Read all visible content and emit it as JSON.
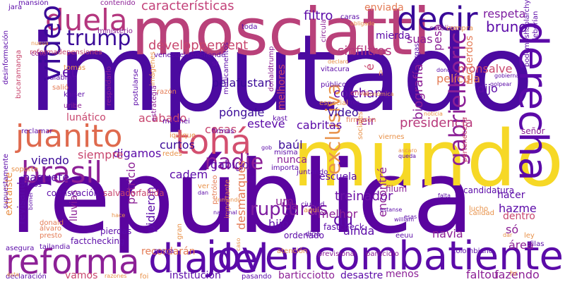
{
  "word_cloud": {
    "words": [
      {
        "text": "imputado",
        "color": "#4b0aa0"
      },
      {
        "text": "república",
        "color": "#5a049f"
      },
      {
        "text": "mundo",
        "color": "#f6d826"
      },
      {
        "text": "mosciatti",
        "color": "#b9417a"
      },
      {
        "text": "jovencombatiente",
        "color": "#5b0aa8"
      },
      {
        "text": "diadel",
        "color": "#5b0aa8"
      },
      {
        "text": "reforma",
        "color": "#8c2096"
      },
      {
        "text": "derecha",
        "color": "#5b0aa8"
      },
      {
        "text": "brasil",
        "color": "#8c2096"
      },
      {
        "text": "juanito",
        "color": "#df6a4e"
      },
      {
        "text": "tohá",
        "color": "#d34f6f"
      },
      {
        "text": "duela",
        "color": "#b4367e"
      },
      {
        "text": "decir",
        "color": "#3a0a98"
      },
      {
        "text": "video",
        "color": "#3a0a98"
      },
      {
        "text": "trump",
        "color": "#3a0a98"
      },
      {
        "text": "nadie",
        "color": "#8c2096"
      },
      {
        "text": "gabrielboric",
        "color": "#8c2096"
      },
      {
        "text": "exclusiva",
        "color": "#e8924a"
      },
      {
        "text": "du",
        "color": "#5b0aa8"
      },
      {
        "text": "rupturas",
        "color": "#7d1ca0"
      },
      {
        "text": "treinador",
        "color": "#6c10a6"
      },
      {
        "text": "presidencia",
        "color": "#b83a7c"
      },
      {
        "text": "biografía",
        "color": "#8c2096"
      },
      {
        "text": "monsalve",
        "color": "#c8466e"
      },
      {
        "text": "película",
        "color": "#e47c56"
      },
      {
        "text": "sinfiltros",
        "color": "#b4367e"
      },
      {
        "text": "colchane",
        "color": "#5b0aa8"
      },
      {
        "text": "développement",
        "color": "#c8466e"
      },
      {
        "text": "características",
        "color": "#c3427a"
      },
      {
        "text": "bruno",
        "color": "#5b0aa8"
      },
      {
        "text": "respeta",
        "color": "#7d1ca0"
      },
      {
        "text": "filtro",
        "color": "#5b0aa8"
      },
      {
        "text": "enviada",
        "color": "#e47c56"
      },
      {
        "text": "vídeo",
        "color": "#3a0a98"
      },
      {
        "text": "melhores",
        "color": "#c8466e"
      },
      {
        "text": "pelafustan",
        "color": "#3a0a98"
      },
      {
        "text": "póngale",
        "color": "#3a0a98"
      },
      {
        "text": "suas",
        "color": "#8c2096"
      },
      {
        "text": "pesa",
        "color": "#8c2096"
      },
      {
        "text": "mierda",
        "color": "#5b0aa8"
      },
      {
        "text": "et",
        "color": "#5b0aa8"
      },
      {
        "text": "acabado",
        "color": "#c8466e"
      },
      {
        "text": "lunático",
        "color": "#c8466e"
      },
      {
        "text": "cosas",
        "color": "#c8466e"
      },
      {
        "text": "esteve",
        "color": "#5b0aa8"
      },
      {
        "text": "cabritas",
        "color": "#5b0aa8"
      },
      {
        "text": "reir",
        "color": "#8c2096"
      },
      {
        "text": "curtos",
        "color": "#3a0a98"
      },
      {
        "text": "digamos",
        "color": "#5b0aa8"
      },
      {
        "text": "siempre",
        "color": "#c8466e"
      },
      {
        "text": "viendo",
        "color": "#3a0a98"
      },
      {
        "text": "paquete",
        "color": "#5b0aa8"
      },
      {
        "text": "cadem",
        "color": "#5b0aa8"
      },
      {
        "text": "gabigol",
        "color": "#5b0aa8"
      },
      {
        "text": "baúl",
        "color": "#3a0a98"
      },
      {
        "text": "nunca",
        "color": "#8c2096"
      },
      {
        "text": "escuela",
        "color": "#5b0aa8"
      },
      {
        "text": "hijo",
        "color": "#5b0aa8"
      },
      {
        "text": "ainda",
        "color": "#5b0aa8"
      },
      {
        "text": "melhor",
        "color": "#8c2096"
      },
      {
        "text": "encontré",
        "color": "#8c2096"
      },
      {
        "text": "navia",
        "color": "#8c2096"
      },
      {
        "text": "hacer",
        "color": "#5b0aa8"
      },
      {
        "text": "hazme",
        "color": "#5b0aa8"
      },
      {
        "text": "dentro",
        "color": "#c8466e"
      },
      {
        "text": "área",
        "color": "#8c2096"
      },
      {
        "text": "só",
        "color": "#8c2096"
      },
      {
        "text": "dijo",
        "color": "#5b0aa8"
      },
      {
        "text": "recuerdos",
        "color": "#e47c56"
      },
      {
        "text": "patricio",
        "color": "#8c2096"
      },
      {
        "text": "recordarán",
        "color": "#e47c56"
      },
      {
        "text": "institución",
        "color": "#5b0aa8"
      },
      {
        "text": "barticciotto",
        "color": "#8c2096"
      },
      {
        "text": "desastre",
        "color": "#5b0aa8"
      },
      {
        "text": "fazendo",
        "color": "#8c2096"
      },
      {
        "text": "faltou",
        "color": "#8c2096"
      },
      {
        "text": "menos",
        "color": "#8c2096"
      },
      {
        "text": "vamos",
        "color": "#c8466e"
      },
      {
        "text": "pidieron",
        "color": "#5b0aa8"
      },
      {
        "text": "desmarques",
        "color": "#e47c56"
      },
      {
        "text": "revisando",
        "color": "#5b0aa8"
      },
      {
        "text": "extraíste",
        "color": "#e8924a"
      },
      {
        "text": "lluvias",
        "color": "#8c2096"
      },
      {
        "text": "um",
        "color": "#8c2096"
      },
      {
        "text": "da",
        "color": "#8c2096"
      },
      {
        "text": "fastcheck",
        "color": "#5b0aa8"
      },
      {
        "text": "ordenado",
        "color": "#5b0aa8"
      },
      {
        "text": "confiscación",
        "color": "#5b0aa8"
      },
      {
        "text": "fallida",
        "color": "#c8466e"
      },
      {
        "text": "salvador",
        "color": "#c8466e"
      },
      {
        "text": "pierdas",
        "color": "#5b0aa8"
      },
      {
        "text": "factchecking",
        "color": "#5b0aa8"
      },
      {
        "text": "candidatura",
        "color": "#5b0aa8"
      },
      {
        "text": "filum",
        "color": "#8c2096"
      },
      {
        "text": "señor",
        "color": "#8c2096"
      },
      {
        "text": "previsional",
        "color": "#8c2096"
      },
      {
        "text": "parricidio",
        "color": "#8c2096"
      },
      {
        "text": "colombiano",
        "color": "#5b0aa8"
      },
      {
        "text": "asegura",
        "color": "#5b0aa8"
      },
      {
        "text": "tailandia",
        "color": "#5b0aa8"
      },
      {
        "text": "declaración",
        "color": "#5b0aa8"
      },
      {
        "text": "pasando",
        "color": "#5b0aa8"
      },
      {
        "text": "atención",
        "color": "#e8924a"
      },
      {
        "text": "calidad",
        "color": "#e8924a"
      },
      {
        "text": "filas",
        "color": "#5b0aa8"
      },
      {
        "text": "ley",
        "color": "#e8924a"
      },
      {
        "text": "vitacura",
        "color": "#5b0aa8"
      },
      {
        "text": "público",
        "color": "#5b0aa8"
      },
      {
        "text": "especial",
        "color": "#e8924a"
      },
      {
        "text": "envía",
        "color": "#c8466e"
      },
      {
        "text": "mega",
        "color": "#5b0aa8"
      },
      {
        "text": "razón",
        "color": "#e47c56"
      },
      {
        "text": "palabras",
        "color": "#5b0aa8"
      },
      {
        "text": "kaiser",
        "color": "#5b0aa8"
      },
      {
        "text": "uribe",
        "color": "#8c2096"
      },
      {
        "text": "tomas",
        "color": "#e8924a"
      },
      {
        "text": "salió",
        "color": "#e47c56"
      },
      {
        "text": "matthei",
        "color": "#5b0aa8"
      },
      {
        "text": "kast",
        "color": "#5b0aa8"
      },
      {
        "text": "firmaron",
        "color": "#e47c56"
      },
      {
        "text": "reclamar",
        "color": "#5b0aa8"
      },
      {
        "text": "mansión",
        "color": "#5b0aa8"
      },
      {
        "text": "jara",
        "color": "#5b0aa8"
      },
      {
        "text": "coto",
        "color": "#8c2096"
      },
      {
        "text": "contenido",
        "color": "#8c2096"
      },
      {
        "text": "ministerio",
        "color": "#8c2096"
      },
      {
        "text": "toda",
        "color": "#5b0aa8"
      },
      {
        "text": "carolina",
        "color": "#8c2096"
      },
      {
        "text": "compra",
        "color": "#e8924a"
      },
      {
        "text": "reformadepensiones",
        "color": "#c8466e"
      },
      {
        "text": "venezuelaedefiende",
        "color": "#5b0aa8"
      },
      {
        "text": "desinformación",
        "color": "#5b0aa8"
      },
      {
        "text": "supuestamente",
        "color": "#5b0aa8"
      },
      {
        "text": "podemoshablarchy",
        "color": "#5b0aa8"
      },
      {
        "text": "deberían",
        "color": "#5b0aa8"
      },
      {
        "text": "estrategia",
        "color": "#8c2096"
      },
      {
        "text": "medicamentos",
        "color": "#5b0aa8"
      },
      {
        "text": "donaldtrump",
        "color": "#8c2096"
      },
      {
        "text": "postularse",
        "color": "#5b0aa8"
      },
      {
        "text": "respaldarlo",
        "color": "#8c2096"
      },
      {
        "text": "bucaramanga",
        "color": "#c8466e"
      },
      {
        "text": "imágenes",
        "color": "#e8924a"
      },
      {
        "text": "firmas",
        "color": "#5b0aa8"
      },
      {
        "text": "redes",
        "color": "#e8924a"
      },
      {
        "text": "iquique",
        "color": "#e8924a"
      },
      {
        "text": "misma",
        "color": "#5b0aa8"
      },
      {
        "text": "importa",
        "color": "#5b0aa8"
      },
      {
        "text": "juntando",
        "color": "#5b0aa8"
      },
      {
        "text": "sociales",
        "color": "#e8924a"
      },
      {
        "text": "viernes",
        "color": "#e8924a"
      },
      {
        "text": "caras",
        "color": "#5b0aa8"
      },
      {
        "text": "largas",
        "color": "#5b0aa8"
      },
      {
        "text": "circula",
        "color": "#8c2096"
      },
      {
        "text": "perteneceria",
        "color": "#c8466e"
      },
      {
        "text": "falsos",
        "color": "#5b0aa8"
      },
      {
        "text": "aquí",
        "color": "#e8924a"
      },
      {
        "text": "ciudad",
        "color": "#5b0aa8"
      },
      {
        "text": "soporte",
        "color": "#e8924a"
      },
      {
        "text": "importante",
        "color": "#e47c56"
      },
      {
        "text": "petróleo",
        "color": "#e47c56"
      },
      {
        "text": "donald",
        "color": "#e47c56"
      },
      {
        "text": "álvaro",
        "color": "#e47c56"
      },
      {
        "text": "presto",
        "color": "#e47c56"
      },
      {
        "text": "gran",
        "color": "#e8924a"
      },
      {
        "text": "diga",
        "color": "#5b0aa8"
      },
      {
        "text": "eeuu",
        "color": "#5b0aa8"
      },
      {
        "text": "lucho",
        "color": "#e8924a"
      },
      {
        "text": "sr",
        "color": "#5b0aa8"
      },
      {
        "text": "ñ",
        "color": "#e47c56"
      },
      {
        "text": "ver",
        "color": "#e8924a"
      },
      {
        "text": "ir",
        "color": "#5b0aa8"
      },
      {
        "text": "hr",
        "color": "#e8924a"
      },
      {
        "text": "foi",
        "color": "#e8924a"
      },
      {
        "text": "caso",
        "color": "#e8924a"
      },
      {
        "text": "razones",
        "color": "#e8924a"
      },
      {
        "text": "declaro",
        "color": "#e8924a"
      },
      {
        "text": "obligado",
        "color": "#e8924a"
      },
      {
        "text": "económica",
        "color": "#e8924a"
      },
      {
        "text": "donde",
        "color": "#5b0aa8"
      },
      {
        "text": "noticia",
        "color": "#e8924a"
      },
      {
        "text": "golpear",
        "color": "#5b0aa8"
      },
      {
        "text": "gobiernan",
        "color": "#5b0aa8"
      },
      {
        "text": "falta",
        "color": "#5b0aa8"
      },
      {
        "text": "queda",
        "color": "#5b0aa8"
      },
      {
        "text": "esas",
        "color": "#5b0aa8"
      },
      {
        "text": "william",
        "color": "#5b0aa8"
      },
      {
        "text": "estanse",
        "color": "#5b0aa8"
      },
      {
        "text": "nacional",
        "color": "#5b0aa8"
      },
      {
        "text": "ascaro",
        "color": "#e8924a"
      },
      {
        "text": "inmundo",
        "color": "#e8924a"
      },
      {
        "text": "hace",
        "color": "#e8924a"
      },
      {
        "text": "bomer",
        "color": "#5b0aa8"
      },
      {
        "text": "dar",
        "color": "#e8924a"
      },
      {
        "text": "gob",
        "color": "#5b0aa8"
      },
      {
        "text": "crea",
        "color": "#5b0aa8"
      },
      {
        "text": "nueva",
        "color": "#e8924a"
      },
      {
        "text": "ésta",
        "color": "#e8924a"
      },
      {
        "text": "dan",
        "color": "#5b0aa8"
      },
      {
        "text": "é",
        "color": "#c8466e"
      }
    ]
  }
}
